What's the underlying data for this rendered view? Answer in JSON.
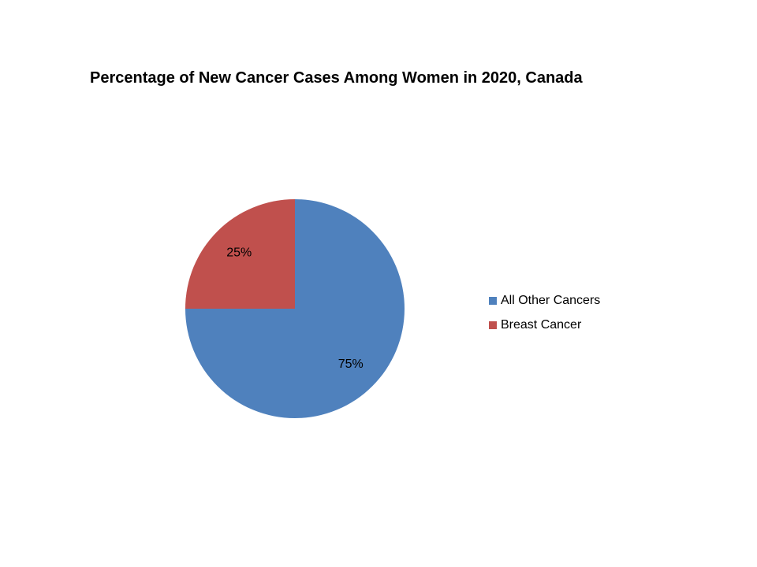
{
  "chart_data": {
    "type": "pie",
    "title": "Percentage of New Cancer Cases Among Women in 2020, Canada",
    "categories": [
      "All Other Cancers",
      "Breast Cancer"
    ],
    "values": [
      75,
      25
    ],
    "data_labels": [
      "75%",
      "25%"
    ],
    "colors": [
      "#4F81BD",
      "#C0504D"
    ],
    "legend_position": "right"
  }
}
